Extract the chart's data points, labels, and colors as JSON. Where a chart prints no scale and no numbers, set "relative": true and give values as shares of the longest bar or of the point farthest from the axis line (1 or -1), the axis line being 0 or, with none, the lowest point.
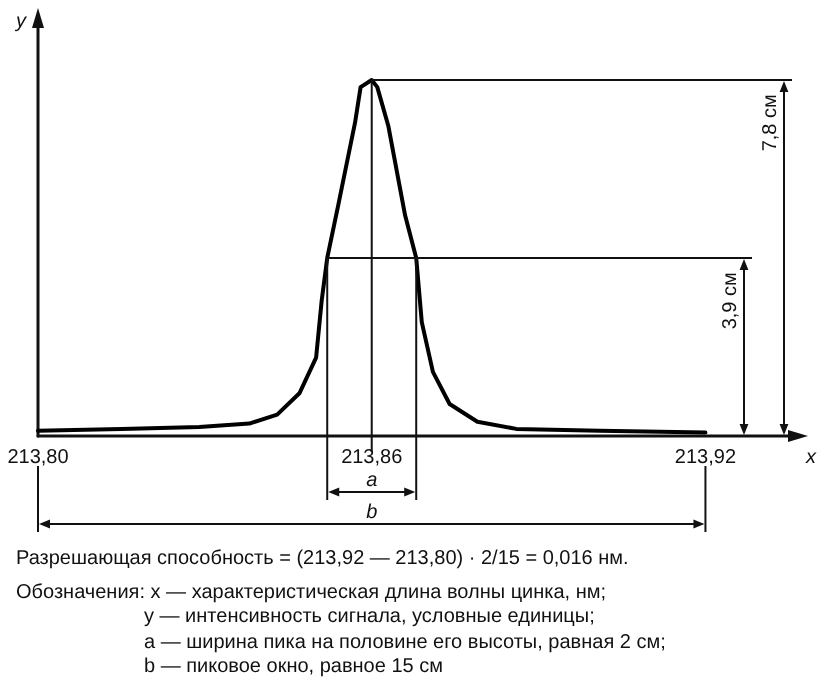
{
  "chart_data": {
    "type": "line",
    "xlabel": "x",
    "ylabel": "y",
    "relative": true,
    "line_style": "solid",
    "tick_labels": "x",
    "xlim": [
      213.8,
      213.937
    ],
    "xticks": [
      {
        "value": 213.8,
        "label": "213,80"
      },
      {
        "value": 213.86,
        "label": "213,86"
      },
      {
        "value": 213.92,
        "label": "213,92"
      }
    ],
    "x": [
      213.8,
      213.815,
      213.829,
      213.838,
      213.843,
      213.847,
      213.85,
      213.851,
      213.852,
      213.854,
      213.857,
      213.858,
      213.86,
      213.861,
      213.863,
      213.866,
      213.868,
      213.869,
      213.871,
      213.874,
      213.879,
      213.886,
      213.901,
      213.92
    ],
    "series": [
      {
        "color": "#000000",
        "values": [
          0.015,
          0.02,
          0.025,
          0.035,
          0.06,
          0.12,
          0.22,
          0.38,
          0.5,
          0.65,
          0.88,
          0.98,
          1.0,
          0.98,
          0.87,
          0.62,
          0.5,
          0.32,
          0.18,
          0.09,
          0.04,
          0.02,
          0.015,
          0.01
        ]
      }
    ],
    "ref_lines": [
      {
        "axis": "y",
        "value": 1,
        "label": "7,8 см"
      },
      {
        "axis": "y",
        "value": 0.5,
        "label": "3,9 см"
      },
      {
        "axis": "x",
        "value": 213.86
      },
      {
        "axis": "x",
        "value": 213.852
      },
      {
        "axis": "x",
        "value": 213.868
      }
    ],
    "annotations": [
      "a",
      "b",
      "Разрешающая способность = (213,92 — 213,80) · 2/15 = 0,016 нм.",
      "Обозначения: x — характеристическая длина волны цинка, нм;",
      "y — интенсивность сигнала, условные единицы;",
      "a — ширина пика на половине его высоты, равная 2 см;",
      "b — пиковое окно, равное 15 см"
    ]
  }
}
